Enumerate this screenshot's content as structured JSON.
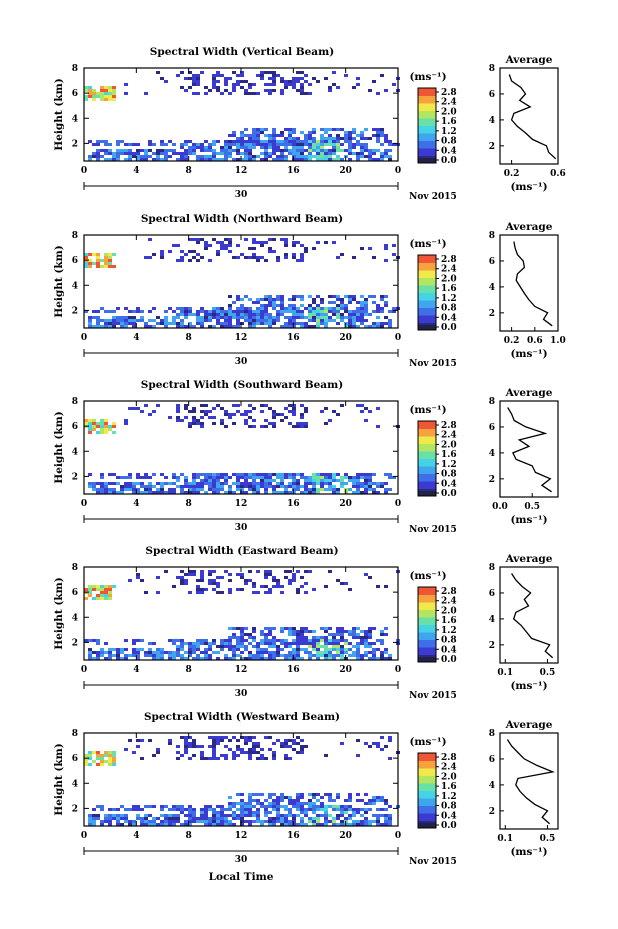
{
  "figure": {
    "xlabel": "Local Time",
    "date_label": "Nov 2015",
    "date_tick": "30",
    "colorbar_unit": "(ms⁻¹)",
    "avg_title": "Average",
    "avg_xlabel": "(ms⁻¹)"
  },
  "colors": {
    "scale": [
      "#2a2a86",
      "#3b3bd1",
      "#3f6fe8",
      "#3fa5ee",
      "#45d3e6",
      "#68e0a8",
      "#b2e660",
      "#f1e94a",
      "#f5a33c",
      "#ef5636"
    ]
  },
  "chart_data": [
    {
      "type": "heatmap",
      "title": "Spectral Width (Vertical Beam)",
      "ylabel": "Height (km)",
      "xlim": [
        0,
        24
      ],
      "ylim": [
        0.6,
        8
      ],
      "x_ticks": [
        "0",
        "4",
        "8",
        "12",
        "16",
        "20",
        "0"
      ],
      "y_ticks": [
        "2",
        "4",
        "6",
        "8"
      ],
      "colorbar": {
        "ticks": [
          "0.0",
          "0.4",
          "0.8",
          "1.2",
          "1.6",
          "2.0",
          "2.4",
          "2.8"
        ],
        "range": [
          0,
          2.8
        ]
      },
      "average": {
        "xlim": [
          0.1,
          0.6
        ],
        "ylim": [
          0.6,
          8
        ],
        "x_ticks": [
          "0.2",
          "0.6"
        ],
        "y": [
          1.0,
          1.5,
          2.0,
          2.5,
          3.0,
          3.5,
          4.0,
          4.5,
          5.0,
          5.5,
          6.0,
          6.5,
          7.0,
          7.5
        ],
        "x": [
          0.58,
          0.52,
          0.5,
          0.38,
          0.32,
          0.25,
          0.2,
          0.22,
          0.36,
          0.27,
          0.32,
          0.28,
          0.2,
          0.18
        ]
      }
    },
    {
      "type": "heatmap",
      "title": "Spectral Width (Northward Beam)",
      "ylabel": "Height (km)",
      "xlim": [
        0,
        24
      ],
      "ylim": [
        0.6,
        8
      ],
      "x_ticks": [
        "0",
        "4",
        "8",
        "12",
        "16",
        "20",
        "0"
      ],
      "y_ticks": [
        "2",
        "4",
        "6",
        "8"
      ],
      "colorbar": {
        "ticks": [
          "0.0",
          "0.4",
          "0.8",
          "1.2",
          "1.6",
          "2.0",
          "2.4",
          "2.8"
        ],
        "range": [
          0,
          2.8
        ]
      },
      "average": {
        "xlim": [
          0.0,
          1.0
        ],
        "ylim": [
          0.6,
          8
        ],
        "x_ticks": [
          "0.2",
          "0.6",
          "1.0"
        ],
        "y": [
          1.0,
          1.5,
          2.0,
          2.5,
          3.0,
          3.5,
          4.0,
          4.5,
          5.0,
          5.5,
          6.0,
          6.5,
          7.0,
          7.5
        ],
        "x": [
          0.9,
          0.75,
          0.82,
          0.6,
          0.5,
          0.42,
          0.35,
          0.28,
          0.3,
          0.42,
          0.4,
          0.3,
          0.26,
          0.24
        ]
      }
    },
    {
      "type": "heatmap",
      "title": "Spectral Width (Southward Beam)",
      "ylabel": "Height (km)",
      "xlim": [
        0,
        24
      ],
      "ylim": [
        0.6,
        8
      ],
      "x_ticks": [
        "0",
        "4",
        "8",
        "12",
        "16",
        "20",
        "0"
      ],
      "y_ticks": [
        "2",
        "4",
        "6",
        "8"
      ],
      "colorbar": {
        "ticks": [
          "0.0",
          "0.4",
          "0.8",
          "1.2",
          "1.6",
          "2.0",
          "2.4",
          "2.8"
        ],
        "range": [
          0,
          2.8
        ]
      },
      "average": {
        "xlim": [
          0.0,
          0.9
        ],
        "ylim": [
          0.6,
          8
        ],
        "x_ticks": [
          "0.0",
          "0.5"
        ],
        "y": [
          1.0,
          1.5,
          2.0,
          2.5,
          3.0,
          3.5,
          4.0,
          4.5,
          5.0,
          5.5,
          6.0,
          6.5,
          7.0,
          7.5
        ],
        "x": [
          0.8,
          0.65,
          0.78,
          0.55,
          0.5,
          0.25,
          0.2,
          0.45,
          0.3,
          0.7,
          0.4,
          0.22,
          0.18,
          0.12
        ]
      }
    },
    {
      "type": "heatmap",
      "title": "Spectral Width (Eastward Beam)",
      "ylabel": "Height (km)",
      "xlim": [
        0,
        24
      ],
      "ylim": [
        0.6,
        8
      ],
      "x_ticks": [
        "0",
        "4",
        "8",
        "12",
        "16",
        "20",
        "0"
      ],
      "y_ticks": [
        "2",
        "4",
        "6",
        "8"
      ],
      "colorbar": {
        "ticks": [
          "0.0",
          "0.4",
          "0.8",
          "1.2",
          "1.6",
          "2.0",
          "2.4",
          "2.8"
        ],
        "range": [
          0,
          2.8
        ]
      },
      "average": {
        "xlim": [
          0.05,
          0.6
        ],
        "ylim": [
          0.6,
          8
        ],
        "x_ticks": [
          "0.1",
          "0.5"
        ],
        "y": [
          1.0,
          1.5,
          2.0,
          2.5,
          3.0,
          3.5,
          4.0,
          4.5,
          5.0,
          5.5,
          6.0,
          6.5,
          7.0,
          7.5
        ],
        "x": [
          0.55,
          0.48,
          0.52,
          0.35,
          0.3,
          0.25,
          0.18,
          0.2,
          0.32,
          0.28,
          0.34,
          0.26,
          0.2,
          0.16
        ]
      }
    },
    {
      "type": "heatmap",
      "title": "Spectral Width (Westward Beam)",
      "ylabel": "Height (km)",
      "xlim": [
        0,
        24
      ],
      "ylim": [
        0.6,
        8
      ],
      "x_ticks": [
        "0",
        "4",
        "8",
        "12",
        "16",
        "20",
        "0"
      ],
      "y_ticks": [
        "2",
        "4",
        "6",
        "8"
      ],
      "colorbar": {
        "ticks": [
          "0.0",
          "0.4",
          "0.8",
          "1.2",
          "1.6",
          "2.0",
          "2.4",
          "2.8"
        ],
        "range": [
          0,
          2.8
        ]
      },
      "average": {
        "xlim": [
          0.05,
          0.6
        ],
        "ylim": [
          0.6,
          8
        ],
        "x_ticks": [
          "0.1",
          "0.5"
        ],
        "y": [
          1.0,
          1.5,
          2.0,
          2.5,
          3.0,
          3.5,
          4.0,
          4.5,
          5.0,
          5.5,
          6.0,
          6.5,
          7.0,
          7.5
        ],
        "x": [
          0.52,
          0.45,
          0.5,
          0.38,
          0.3,
          0.24,
          0.2,
          0.22,
          0.55,
          0.4,
          0.28,
          0.22,
          0.16,
          0.12
        ]
      }
    }
  ]
}
